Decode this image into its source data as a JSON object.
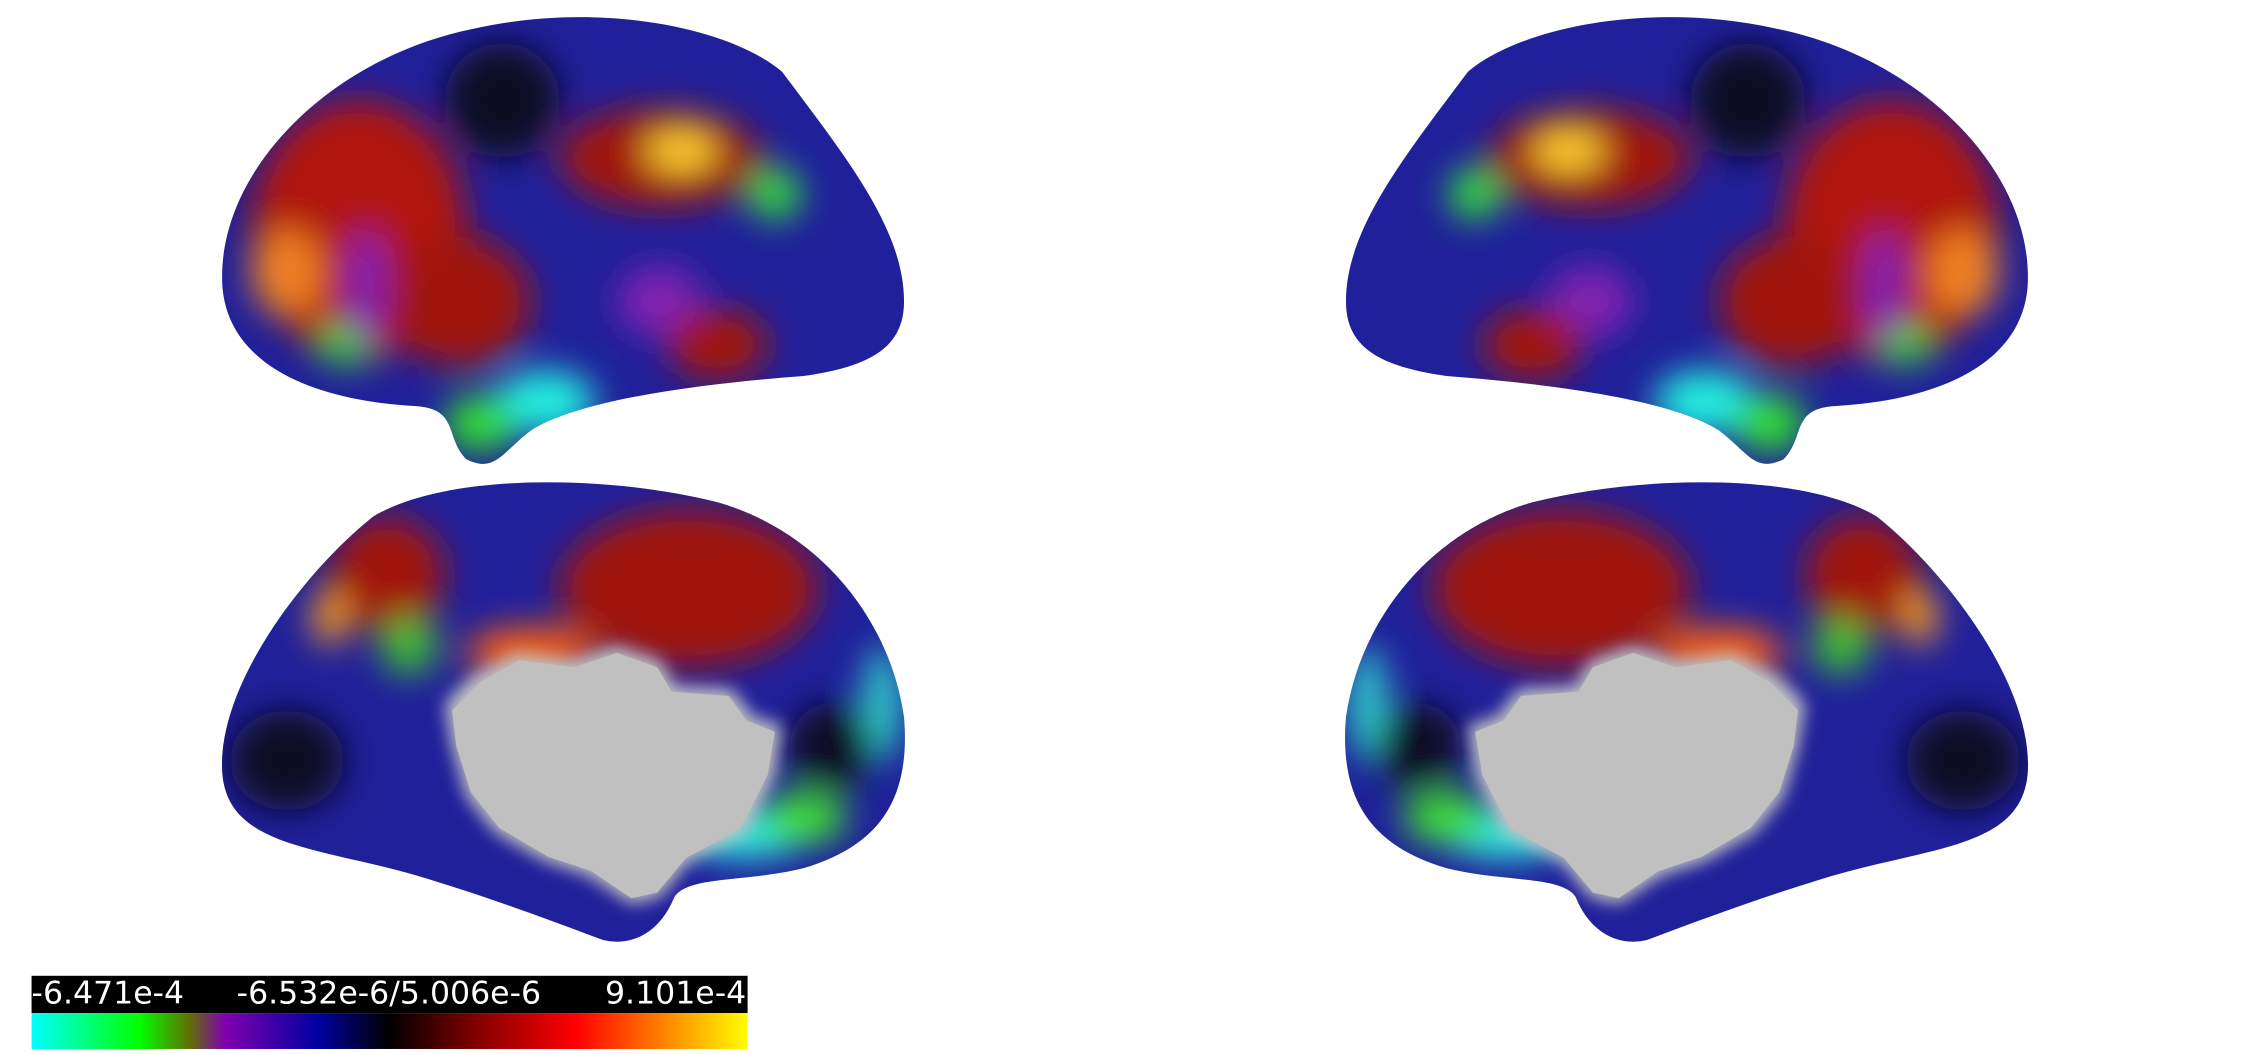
{
  "colorbar": {
    "labels": [
      "-6.471e-4",
      "-6.532e-6/5.006e-6",
      "9.101e-4"
    ]
  }
}
